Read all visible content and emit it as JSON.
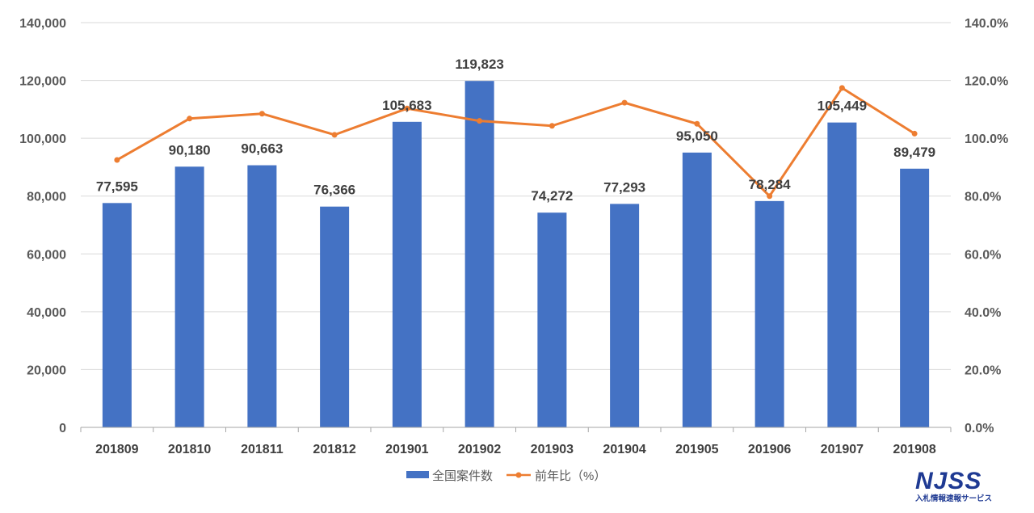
{
  "chart_data": {
    "type": "bar",
    "categories": [
      "201809",
      "201810",
      "201811",
      "201812",
      "201901",
      "201902",
      "201903",
      "201904",
      "201905",
      "201906",
      "201907",
      "201908"
    ],
    "series": [
      {
        "name": "全国案件数",
        "type": "bar",
        "axis": "left",
        "color": "#4472C4",
        "values": [
          77595,
          90180,
          90663,
          76366,
          105683,
          119823,
          74272,
          77293,
          95050,
          78284,
          105449,
          89479
        ],
        "labels": [
          "77,595",
          "90,180",
          "90,663",
          "76,366",
          "105,683",
          "119,823",
          "74,272",
          "77,293",
          "95,050",
          "78,284",
          "105,449",
          "89,479"
        ]
      },
      {
        "name": "前年比（%）",
        "type": "line",
        "axis": "right",
        "color": "#ED7D31",
        "values": [
          92.5,
          106.8,
          108.5,
          101.2,
          110.3,
          106.0,
          104.3,
          112.3,
          105.0,
          80.0,
          117.4,
          101.6
        ]
      }
    ],
    "y_left": {
      "min": 0,
      "max": 140000,
      "step": 20000,
      "tick_labels": [
        "0",
        "20,000",
        "40,000",
        "60,000",
        "80,000",
        "100,000",
        "120,000",
        "140,000"
      ]
    },
    "y_right": {
      "min": 0,
      "max": 140,
      "step": 20,
      "tick_labels": [
        "0.0%",
        "20.0%",
        "40.0%",
        "60.0%",
        "80.0%",
        "100.0%",
        "120.0%",
        "140.0%"
      ]
    },
    "grid": true,
    "legend_position": "bottom"
  },
  "logo": {
    "text": "NJSS",
    "subtitle": "入札情報速報サービス"
  }
}
